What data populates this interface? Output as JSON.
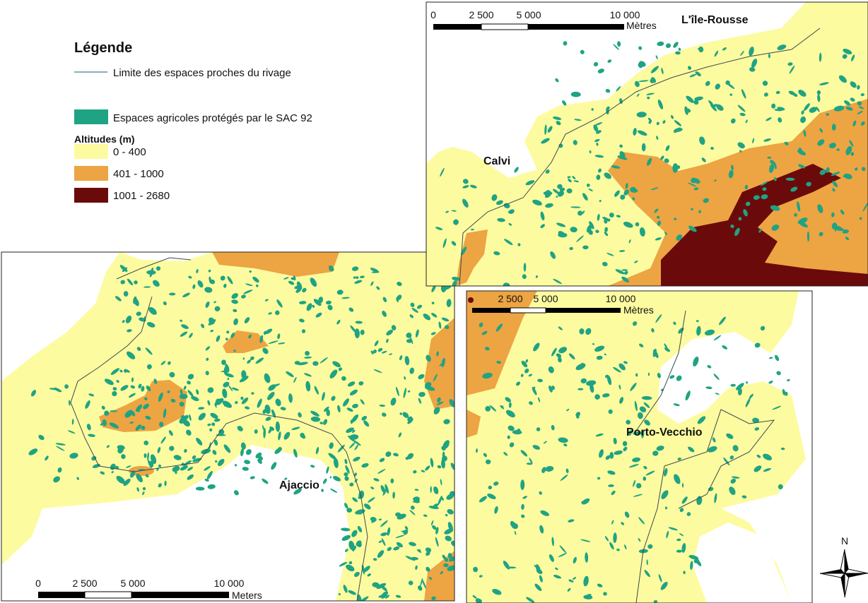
{
  "legend": {
    "title": "Légende",
    "boundary": "Limite des espaces proches du rivage",
    "agricultural": "Espaces agricoles protégés par le SAC 92",
    "altitude_title": "Altitudes (m)",
    "classes": [
      {
        "label": "0 - 400",
        "color": "#fdfb9f"
      },
      {
        "label": "401 - 1000",
        "color": "#eda443"
      },
      {
        "label": "1001 - 2680",
        "color": "#6b0a0a"
      }
    ],
    "agricultural_color": "#1fa383"
  },
  "maps": [
    {
      "places": [
        "L'île-Rousse",
        "Calvi"
      ],
      "scale": {
        "ticks": [
          "0",
          "2 500",
          "5 000",
          "10 000"
        ],
        "unit": "Mètres"
      }
    },
    {
      "places": [
        "Ajaccio"
      ],
      "scale": {
        "ticks": [
          "0",
          "2 500",
          "5 000",
          "10 000"
        ],
        "unit": "Meters"
      }
    },
    {
      "places": [
        "Porto-Vecchio"
      ],
      "scale": {
        "ticks": [
          "2 500",
          "5 000",
          "10 000"
        ],
        "unit": "Mètres"
      }
    }
  ],
  "north": "N"
}
